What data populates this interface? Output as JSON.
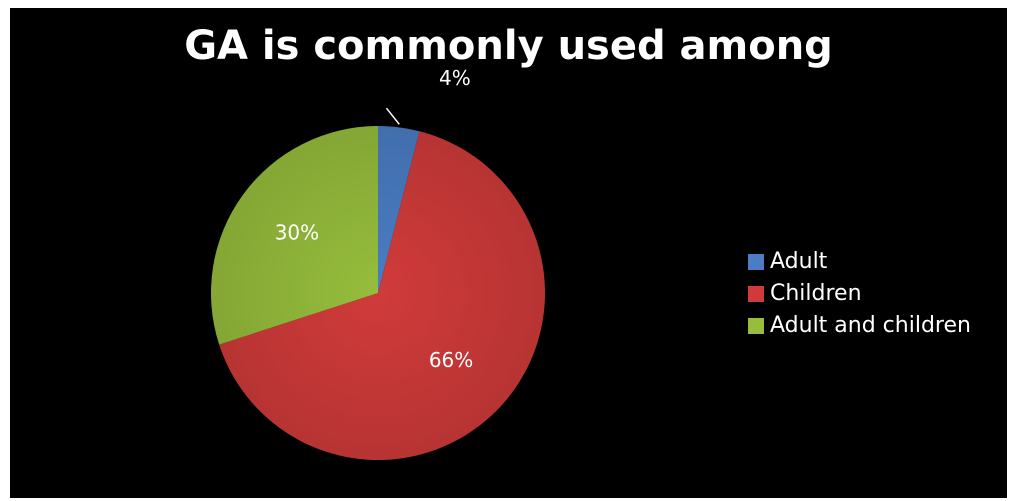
{
  "chart_data": {
    "type": "pie",
    "title": "GA is commonly used among",
    "categories": [
      "Adult",
      "Children",
      "Adult and children"
    ],
    "values": [
      4,
      66,
      30
    ],
    "labels": [
      "4%",
      "66%",
      "30%"
    ],
    "colors": [
      "#4a7dc4",
      "#d03b3a",
      "#96bd3c"
    ],
    "legend_position": "right",
    "start": "top",
    "direction": "clockwise"
  }
}
